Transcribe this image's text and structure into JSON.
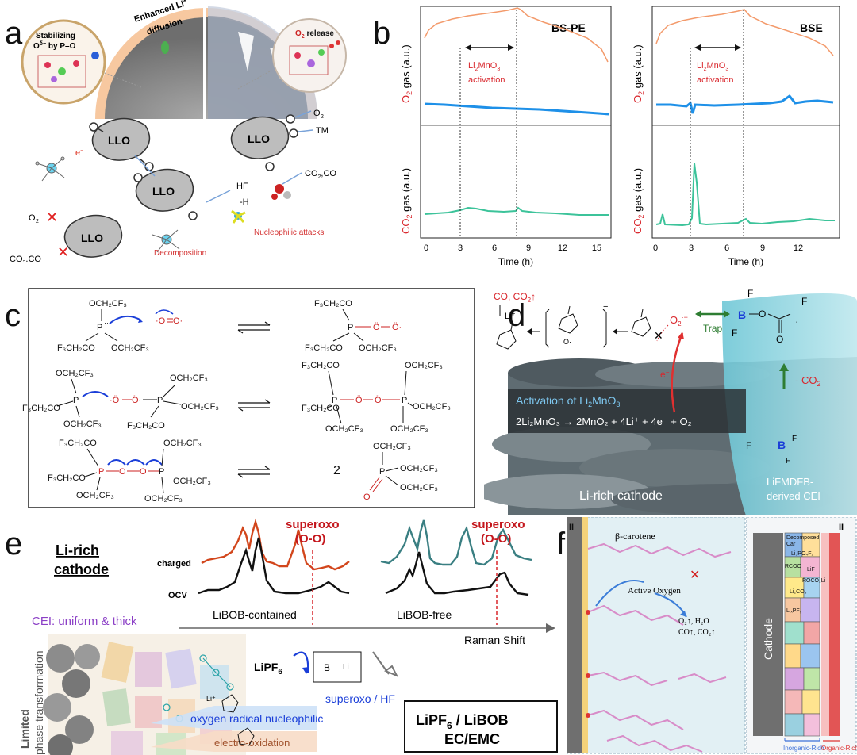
{
  "panels": {
    "a": {
      "label": "a",
      "enhanced": "Enhanced Li",
      "diffusion": "diffusion",
      "stabilizing": "Stabilizing",
      "stab2": "O",
      "stab3": "by P–O",
      "o2release": "O",
      "o2release2": "release",
      "llo": "LLO",
      "o2": "O",
      "tm": "TM",
      "hf": "HF",
      "h": "-H",
      "co2co": "CO",
      "co2co_b": ",CO",
      "electron": "e",
      "decomposition": "Decomposition",
      "nucleophilic": "Nucleophilic attacks"
    },
    "b": {
      "label": "b",
      "titles": [
        "BS-PE",
        "BSE"
      ],
      "activation1": "Li",
      "activation2": "MnO",
      "activation3": "activation",
      "ylabel_o2": "gas (a.u.)",
      "ylabel_o2_prefix": "O",
      "ylabel_co2_prefix": "CO",
      "xlabel": "Time (h)",
      "xticks": [
        "0",
        "3",
        "6",
        "9",
        "12",
        "15"
      ]
    },
    "c": {
      "label": "c"
    },
    "d": {
      "label": "d",
      "co_co2": "CO, CO",
      "li": "Li",
      "o2minus": "O",
      "trap": "Trap",
      "co2": "- CO",
      "electron": "e",
      "activation": "Activation of Li",
      "activation_b": "MnO",
      "reaction": "2Li₂MnO₃ → 2MnO₂ + 4Li⁺ + 4e⁻ + O₂",
      "cathode": "Li-rich cathode",
      "cei1": "LiFMDFB-",
      "cei2": "derived CEI"
    },
    "e": {
      "label": "e",
      "lirich1": "Li-rich",
      "lirich2": "cathode",
      "charged": "charged",
      "ocv": "OCV",
      "superoxo": "superoxo",
      "oo": "(O-O)",
      "libob_contained": "LiBOB-contained",
      "libob_free": "LiBOB-free",
      "raman": "Raman Shift",
      "cei": "CEI: uniform & thick",
      "limited1": "Limited",
      "limited2": "phase transformation",
      "lipf6": "LiPF",
      "superoxo_hf": "superoxo / HF",
      "oxygen_radical": "oxygen radical nucleophilic",
      "electro": "electro-oxidation",
      "box1": "LiPF",
      "box1b": " / LiBOB",
      "box2": "EC/EMC"
    },
    "f": {
      "label": "f",
      "roman": "II",
      "carotene": "β-carotene",
      "active": "Active Oxygen",
      "products1": "O₂↑, H₂O",
      "products2": "CO↑, CO₂↑",
      "cathode": "Cathode",
      "decomposed": "Decomposed",
      "car": "Car",
      "lipo": "Li₃PO₄F₂",
      "rcoo": "RCOO",
      "roco2li": "ROCO₂Li",
      "lif": "LiF",
      "li2co3": "Li₂CO₃",
      "lipf": "LiₓPFᵧ",
      "inorganic": "Inorganic-Rich",
      "organic": "Organic-Rich"
    }
  },
  "colors": {
    "orange": "#f39a6b",
    "blue": "#1e90e8",
    "green": "#3cc39a",
    "red": "#d9262c",
    "teal": "#3a7f82",
    "charged_red": "#d2461c",
    "purple": "#8b3fc6"
  }
}
